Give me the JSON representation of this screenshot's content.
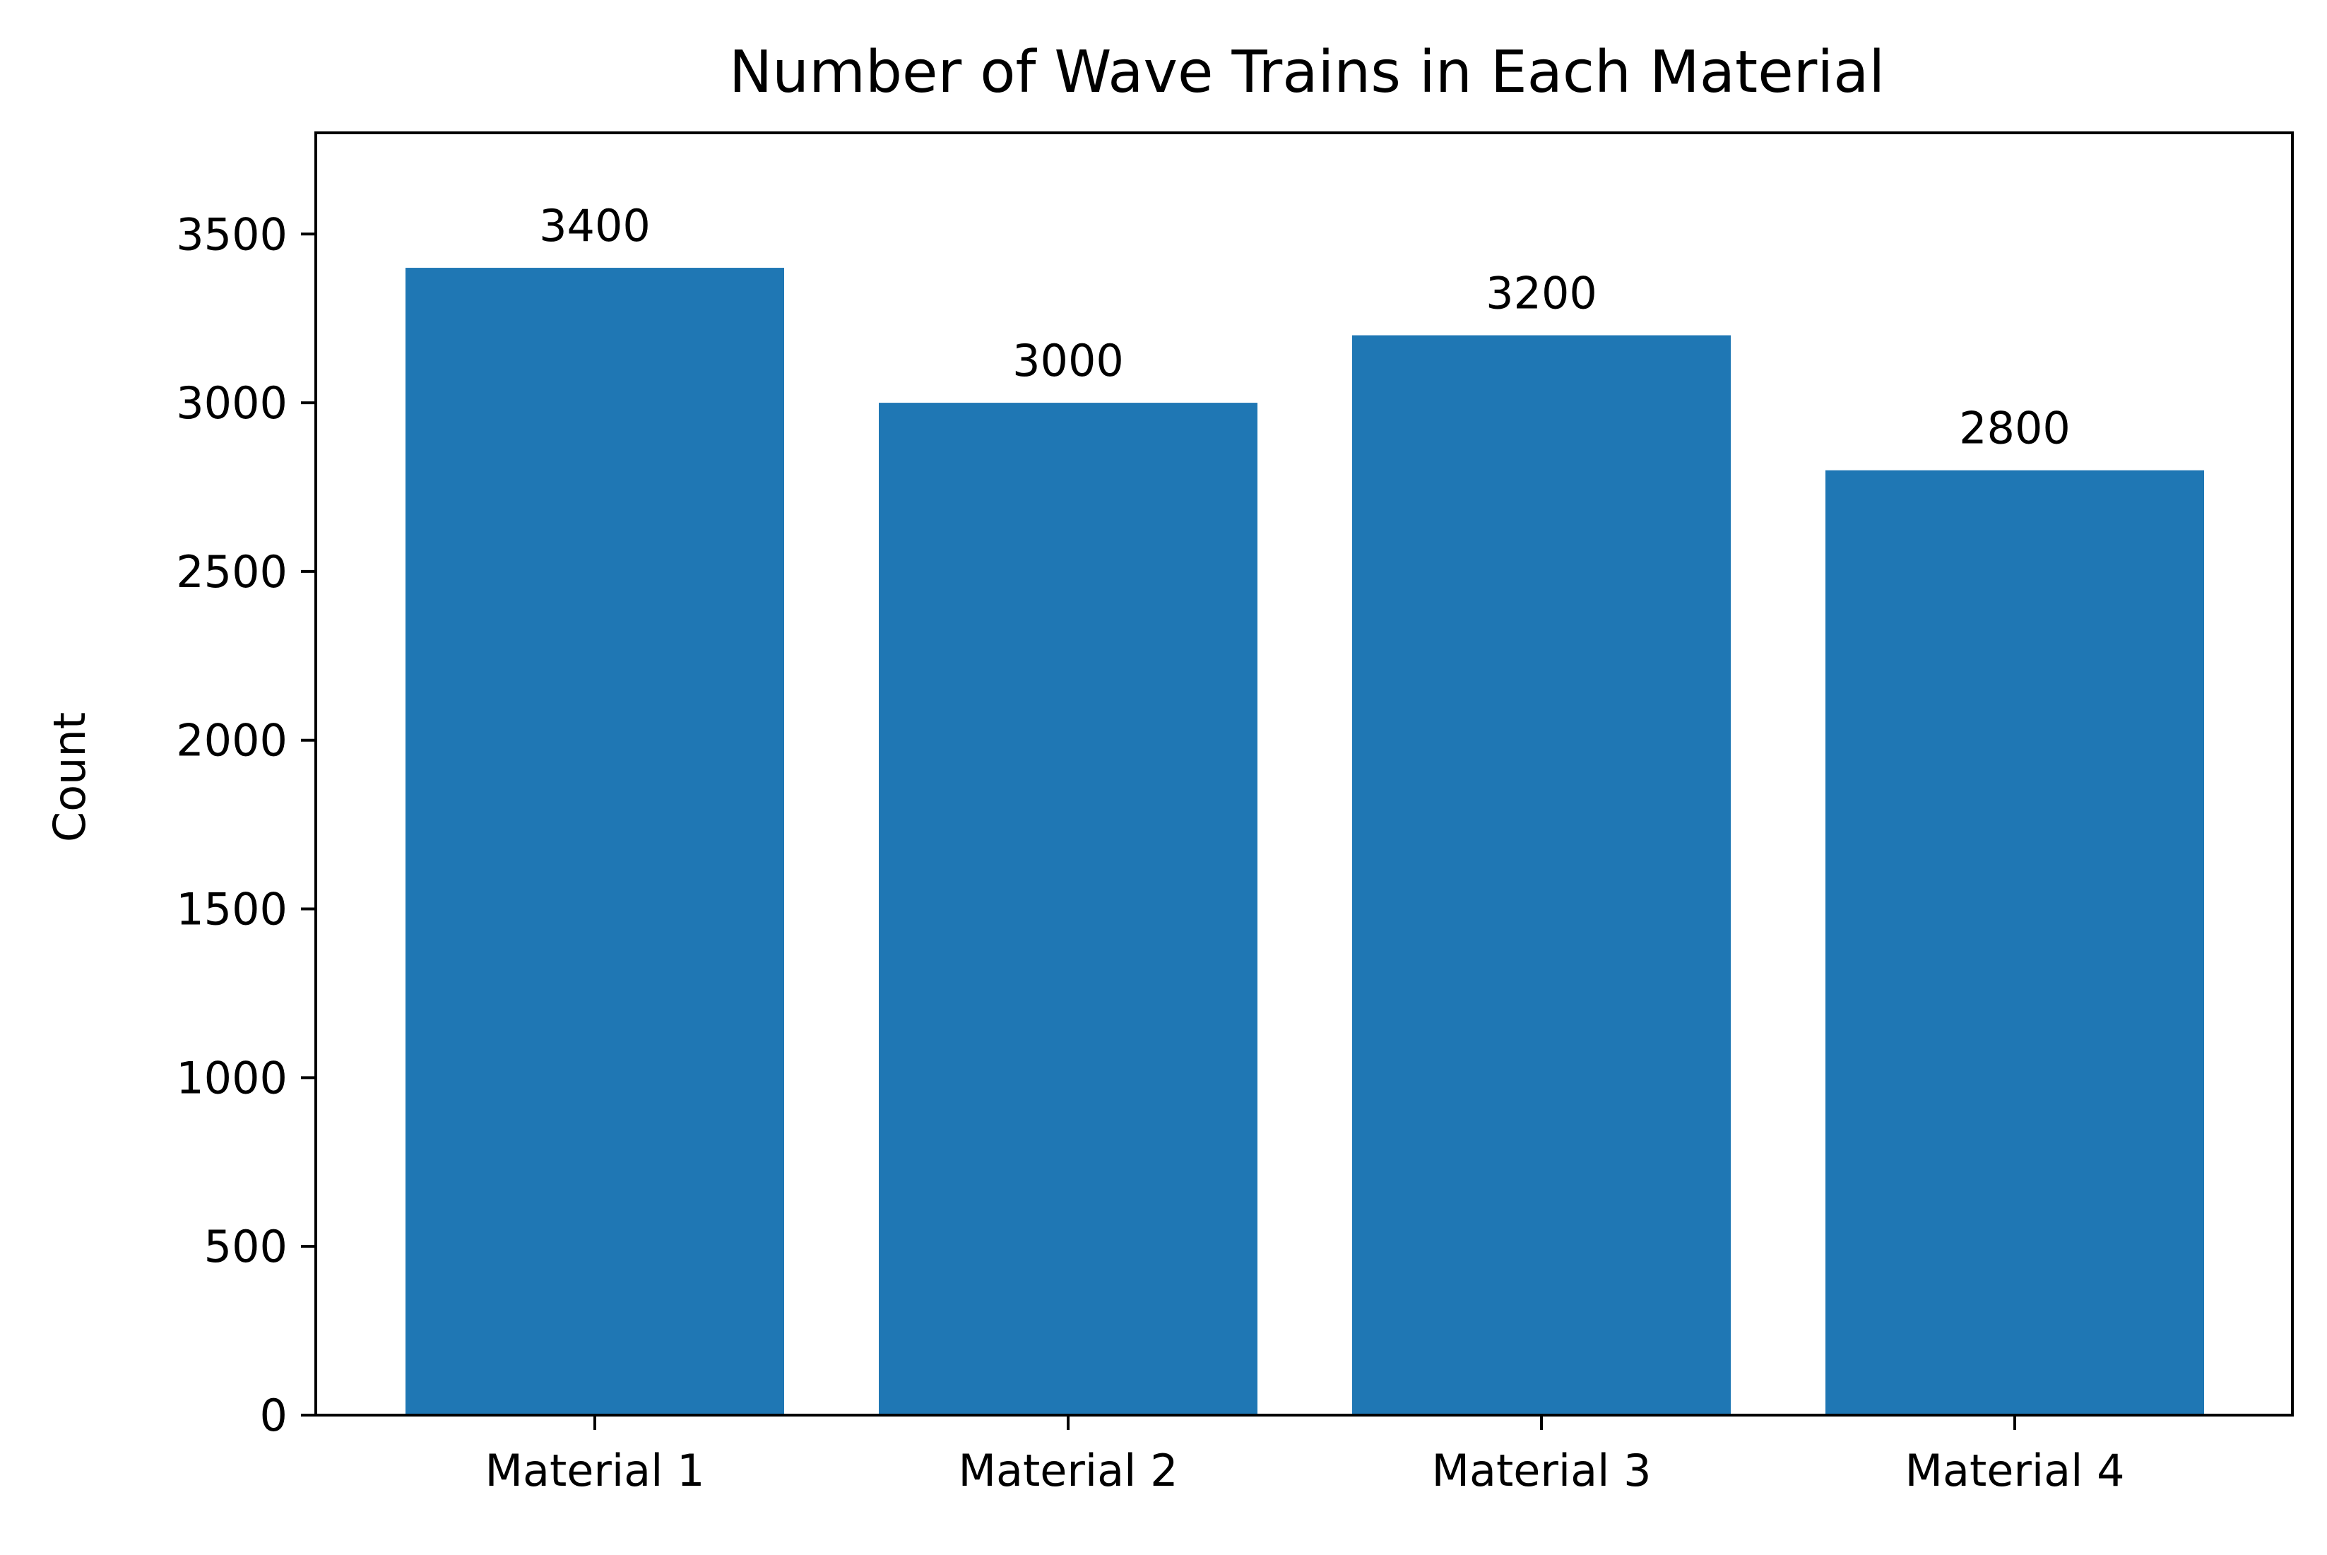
{
  "chart_data": {
    "type": "bar",
    "title": "Number of Wave Trains in Each Material",
    "xlabel": "",
    "ylabel": "Count",
    "categories": [
      "Material 1",
      "Material 2",
      "Material 3",
      "Material 4"
    ],
    "values": [
      3400,
      3000,
      3200,
      2800
    ],
    "value_labels": [
      "3400",
      "3000",
      "3200",
      "2800"
    ],
    "ylim": [
      0,
      3800
    ],
    "yticks": [
      0,
      500,
      1000,
      1500,
      2000,
      2500,
      3000,
      3500
    ],
    "ytick_labels": [
      "0",
      "500",
      "1000",
      "1500",
      "2000",
      "2500",
      "3000",
      "3500"
    ],
    "bar_color": "#1f77b4",
    "grid": false,
    "legend": "none"
  }
}
